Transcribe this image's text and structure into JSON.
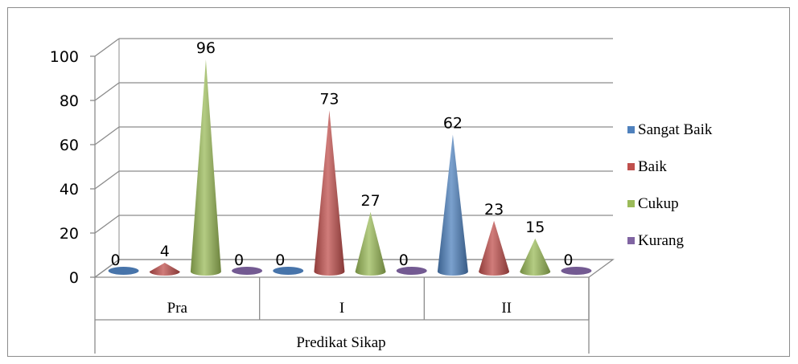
{
  "chart_data": {
    "type": "bar",
    "bar_shape": "cone",
    "categories": [
      "Pra",
      "I",
      "II"
    ],
    "xlabel": "Predikat Sikap",
    "ylabel": "",
    "title": "",
    "ylim": [
      0,
      100
    ],
    "yticks": [
      0,
      20,
      40,
      60,
      80,
      100
    ],
    "grid": true,
    "legend_position": "right",
    "series": [
      {
        "name": "Sangat Baik",
        "color": "#4f81bd",
        "values": [
          0,
          0,
          62
        ]
      },
      {
        "name": "Baik",
        "color": "#c0504d",
        "values": [
          4,
          73,
          23
        ]
      },
      {
        "name": "Cukup",
        "color": "#9bbb59",
        "values": [
          96,
          27,
          15
        ]
      },
      {
        "name": "Kurang",
        "color": "#8064a2",
        "values": [
          0,
          0,
          0
        ]
      }
    ]
  }
}
